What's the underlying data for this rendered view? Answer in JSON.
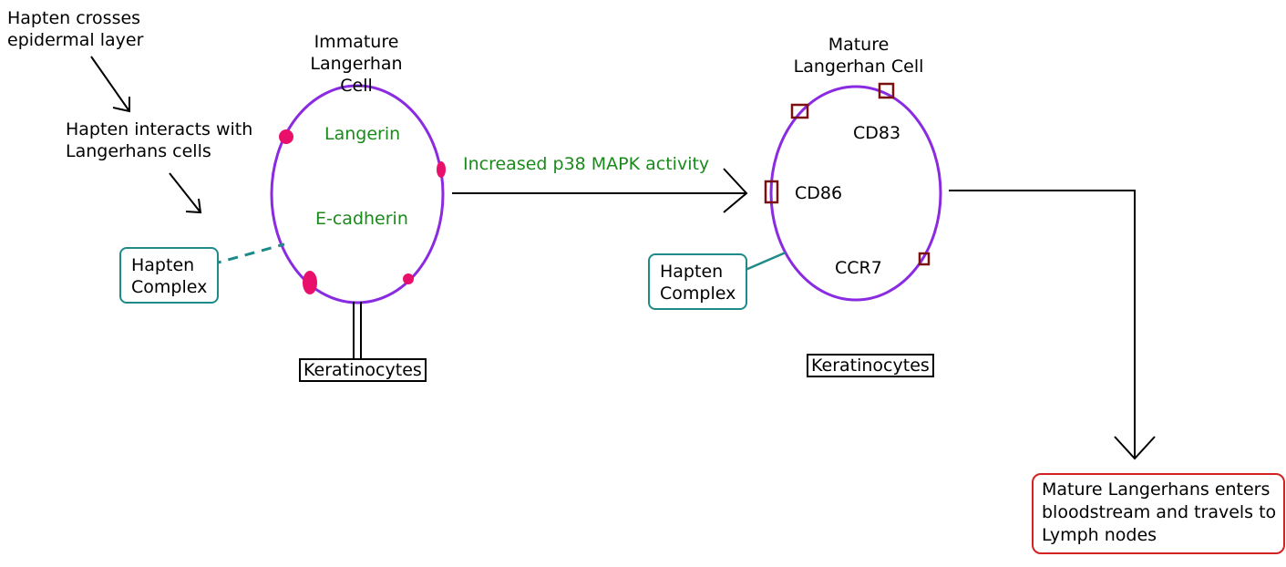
{
  "steps": {
    "step1": "Hapten crosses\nepidermal layer",
    "step2": "Hapten interacts with\nLangerhans cells"
  },
  "immature_cell": {
    "title": "Immature\nLangerhan Cell",
    "marker1": "Langerin",
    "marker2": "E-cadherin",
    "hapten_complex": "Hapten\nComplex",
    "keratinocytes": "Keratinocytes"
  },
  "transition": {
    "label": "Increased p38 MAPK activity"
  },
  "mature_cell": {
    "title": "Mature\nLangerhan Cell",
    "marker1": "CD83",
    "marker2": "CD86",
    "marker3": "CCR7",
    "hapten_complex": "Hapten\nComplex",
    "keratinocytes": "Keratinocytes"
  },
  "outcome": {
    "text": "Mature Langerhans enters\nbloodstream and travels to\nLymph nodes"
  },
  "colors": {
    "cell_membrane": "#8a2be2",
    "immature_markers": "#e8106a",
    "mature_receptors": "#7a1010",
    "marker_text": "#1a8a1a",
    "hapten_box": "#1e8a8a",
    "outcome_box": "#d22222"
  }
}
